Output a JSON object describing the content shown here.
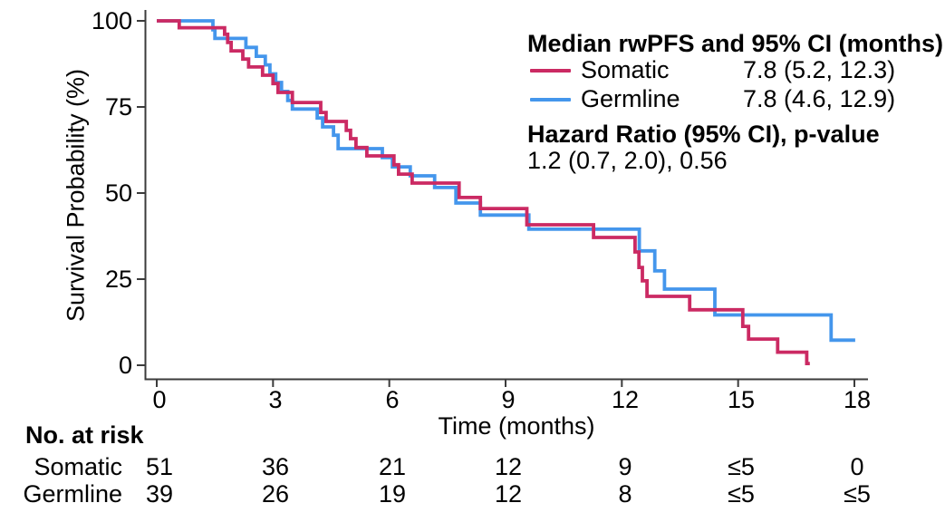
{
  "figure": {
    "y_axis": {
      "title": "Survival Probability (%)",
      "ticks": [
        "100",
        "75",
        "50",
        "25",
        "0"
      ]
    },
    "x_axis": {
      "title": "Time (months)",
      "ticks": [
        "0",
        "3",
        "6",
        "9",
        "12",
        "15",
        "18"
      ]
    },
    "legend": {
      "median_header": "Median rwPFS and 95% CI (months)",
      "series": [
        {
          "name": "Somatic",
          "median": "7.8 (5.2, 12.3)"
        },
        {
          "name": "Germline",
          "median": "7.8 (4.6, 12.9)"
        }
      ],
      "hazard_header": "Hazard Ratio (95% CI), p-value",
      "hazard_value": "1.2 (0.7, 2.0), 0.56"
    },
    "risk_table": {
      "header": "No. at risk",
      "rows": [
        {
          "label": "Somatic",
          "values": [
            "51",
            "36",
            "21",
            "12",
            "9",
            "≤5",
            "0"
          ]
        },
        {
          "label": "Germline",
          "values": [
            "39",
            "26",
            "19",
            "12",
            "8",
            "≤5",
            "≤5"
          ]
        }
      ]
    }
  },
  "chart_data": {
    "type": "line",
    "subtype": "kaplan-meier-step",
    "title": "Median rwPFS and 95% CI (months)",
    "xlabel": "Time (months)",
    "ylabel": "Survival Probability (%)",
    "xlim": [
      0,
      18
    ],
    "ylim": [
      0,
      100
    ],
    "x_ticks": [
      0,
      3,
      6,
      9,
      12,
      15,
      18
    ],
    "y_ticks": [
      0,
      25,
      50,
      75,
      100
    ],
    "grid": false,
    "legend_position": "top-right",
    "series": [
      {
        "name": "Somatic",
        "color": "#CB2A63",
        "median_months": "7.8 (5.2, 12.3)",
        "n_at_risk": [
          51,
          36,
          21,
          12,
          9,
          "≤5",
          0
        ],
        "end_t": 16.85,
        "points": [
          [
            0,
            100
          ],
          [
            0.58,
            98.0
          ],
          [
            1.75,
            96.1
          ],
          [
            1.83,
            93.7
          ],
          [
            1.92,
            91.3
          ],
          [
            2.22,
            88.9
          ],
          [
            2.37,
            86.6
          ],
          [
            2.73,
            84.2
          ],
          [
            3.0,
            81.8
          ],
          [
            3.13,
            79.2
          ],
          [
            3.5,
            76.3
          ],
          [
            4.23,
            73.4
          ],
          [
            4.37,
            70.8
          ],
          [
            4.89,
            68.2
          ],
          [
            5.0,
            65.8
          ],
          [
            5.14,
            63.2
          ],
          [
            5.42,
            60.8
          ],
          [
            6.12,
            58.2
          ],
          [
            6.24,
            55.5
          ],
          [
            6.59,
            52.9
          ],
          [
            7.8,
            48.7
          ],
          [
            8.35,
            45.5
          ],
          [
            9.55,
            40.8
          ],
          [
            11.27,
            37.1
          ],
          [
            12.34,
            32.9
          ],
          [
            12.44,
            28.4
          ],
          [
            12.53,
            24.5
          ],
          [
            12.65,
            20.0
          ],
          [
            13.75,
            16.1
          ],
          [
            15.12,
            11.3
          ],
          [
            15.27,
            7.6
          ],
          [
            16.02,
            3.8
          ],
          [
            16.77,
            0.5
          ]
        ]
      },
      {
        "name": "Germline",
        "color": "#4496EC",
        "median_months": "7.8 (4.6, 12.9)",
        "n_at_risk": [
          39,
          26,
          19,
          12,
          8,
          "≤5",
          "≤5"
        ],
        "end_t": 18.02,
        "points": [
          [
            0,
            100
          ],
          [
            1.45,
            97.4
          ],
          [
            1.5,
            94.9
          ],
          [
            2.3,
            92.3
          ],
          [
            2.57,
            89.7
          ],
          [
            2.8,
            87.2
          ],
          [
            2.92,
            84.6
          ],
          [
            3.07,
            82.1
          ],
          [
            3.22,
            79.5
          ],
          [
            3.38,
            76.9
          ],
          [
            3.5,
            74.4
          ],
          [
            4.14,
            71.8
          ],
          [
            4.28,
            69.2
          ],
          [
            4.56,
            66.8
          ],
          [
            4.68,
            62.9
          ],
          [
            5.82,
            60.3
          ],
          [
            6.08,
            57.6
          ],
          [
            6.54,
            55.0
          ],
          [
            7.17,
            51.6
          ],
          [
            7.72,
            47.1
          ],
          [
            8.35,
            43.6
          ],
          [
            9.6,
            39.5
          ],
          [
            12.45,
            33.2
          ],
          [
            12.85,
            27.4
          ],
          [
            13.1,
            22.1
          ],
          [
            14.4,
            14.6
          ],
          [
            17.4,
            7.3
          ]
        ]
      }
    ],
    "annotations": {
      "hazard_ratio_header": "Hazard Ratio (95% CI), p-value",
      "hazard_ratio_value": "1.2 (0.7, 2.0), 0.56"
    }
  }
}
